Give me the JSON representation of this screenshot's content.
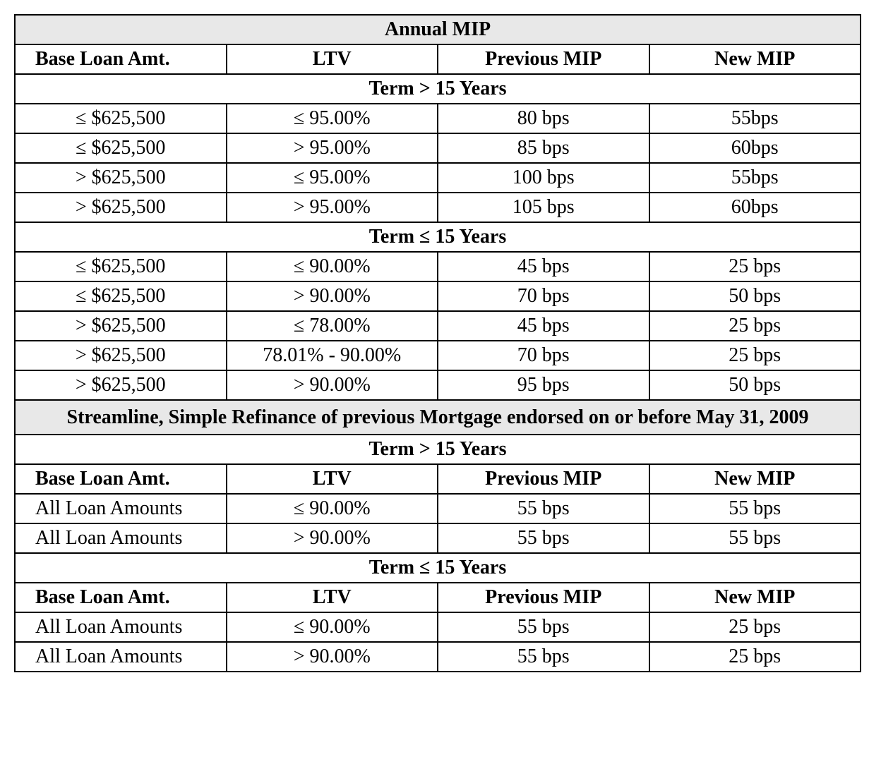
{
  "table": {
    "title": "Annual MIP",
    "headers1": {
      "c1": "Base Loan Amt.",
      "c2": "LTV",
      "c3": "Previous MIP",
      "c4": "New MIP"
    },
    "section1": "Term > 15 Years",
    "rows1": [
      {
        "c1": "≤ $625,500",
        "c2": "≤ 95.00%",
        "c3": "80 bps",
        "c4": "55bps"
      },
      {
        "c1": "≤ $625,500",
        "c2": "> 95.00%",
        "c3": "85 bps",
        "c4": "60bps"
      },
      {
        "c1": "> $625,500",
        "c2": "≤ 95.00%",
        "c3": "100 bps",
        "c4": "55bps"
      },
      {
        "c1": "> $625,500",
        "c2": "> 95.00%",
        "c3": "105 bps",
        "c4": "60bps"
      }
    ],
    "section2": "Term ≤ 15 Years",
    "rows2": [
      {
        "c1": "≤ $625,500",
        "c2": "≤ 90.00%",
        "c3": "45 bps",
        "c4": "25 bps"
      },
      {
        "c1": "≤ $625,500",
        "c2": "> 90.00%",
        "c3": "70 bps",
        "c4": "50 bps"
      },
      {
        "c1": "> $625,500",
        "c2": "≤ 78.00%",
        "c3": "45 bps",
        "c4": "25 bps"
      },
      {
        "c1": "> $625,500",
        "c2": "78.01% - 90.00%",
        "c3": "70 bps",
        "c4": "25 bps"
      },
      {
        "c1": "> $625,500",
        "c2": "> 90.00%",
        "c3": "95 bps",
        "c4": "50 bps"
      }
    ],
    "section3": "Streamline, Simple Refinance of previous Mortgage endorsed on or before May 31, 2009",
    "section4": "Term > 15 Years",
    "headers2": {
      "c1": "Base Loan Amt.",
      "c2": "LTV",
      "c3": "Previous MIP",
      "c4": "New MIP"
    },
    "rows3": [
      {
        "c1": "All Loan Amounts",
        "c2": "≤ 90.00%",
        "c3": "55 bps",
        "c4": "55 bps"
      },
      {
        "c1": "All Loan Amounts",
        "c2": "> 90.00%",
        "c3": "55 bps",
        "c4": "55 bps"
      }
    ],
    "section5": "Term ≤ 15 Years",
    "headers3": {
      "c1": "Base Loan Amt.",
      "c2": "LTV",
      "c3": "Previous MIP",
      "c4": "New MIP"
    },
    "rows4": [
      {
        "c1": "All Loan Amounts",
        "c2": "≤ 90.00%",
        "c3": "55 bps",
        "c4": "25 bps"
      },
      {
        "c1": "All Loan Amounts",
        "c2": "> 90.00%",
        "c3": "55 bps",
        "c4": "25 bps"
      }
    ]
  },
  "style": {
    "border_color": "#000000",
    "shaded_bg": "#e8e8e8",
    "font_size": 28,
    "col_widths_pct": [
      25,
      25,
      25,
      25
    ]
  }
}
